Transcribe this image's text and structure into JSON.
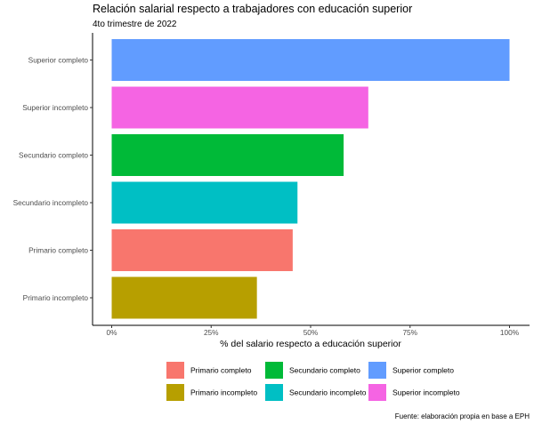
{
  "chart_data": {
    "type": "bar",
    "orientation": "horizontal",
    "title": "Relación salarial respecto a trabajadores con educación superior",
    "subtitle": "4to trimestre de 2022",
    "xlabel": "% del salario respecto a educación superior",
    "ylabel": "",
    "caption": "Fuente: elaboración propia en base a EPH",
    "xlim": [
      0,
      100
    ],
    "x_ticks": [
      "0%",
      "25%",
      "50%",
      "75%",
      "100%"
    ],
    "categories": [
      "Superior completo",
      "Superior incompleto",
      "Secundario completo",
      "Secundario incompleto",
      "Primario completo",
      "Primario incompleto"
    ],
    "values": [
      100,
      64.5,
      58.3,
      46.7,
      45.5,
      36.5
    ],
    "colors": [
      "#619CFF",
      "#F564E3",
      "#00BA38",
      "#00BFC4",
      "#F8766D",
      "#B79F00"
    ],
    "legend": {
      "position": "bottom",
      "entries": [
        {
          "label": "Primario completo",
          "color": "#F8766D"
        },
        {
          "label": "Primario incompleto",
          "color": "#B79F00"
        },
        {
          "label": "Secundario completo",
          "color": "#00BA38"
        },
        {
          "label": "Secundario incompleto",
          "color": "#00BFC4"
        },
        {
          "label": "Superior completo",
          "color": "#619CFF"
        },
        {
          "label": "Superior incompleto",
          "color": "#F564E3"
        }
      ]
    },
    "grid": false
  }
}
